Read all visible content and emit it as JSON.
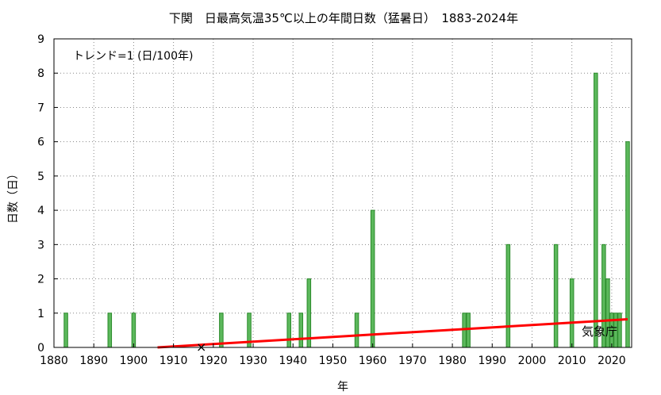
{
  "chart_data": {
    "type": "bar",
    "title": "下関　日最高気温35℃以上の年間日数（猛暑日）　1883-2024年",
    "xlabel": "年",
    "ylabel": "日数（日）",
    "xlim": [
      1880,
      2025
    ],
    "ylim": [
      0,
      9
    ],
    "x_ticks": [
      1880,
      1890,
      1900,
      1910,
      1920,
      1930,
      1940,
      1950,
      1960,
      1970,
      1980,
      1990,
      2000,
      2010,
      2020
    ],
    "y_ticks": [
      0,
      1,
      2,
      3,
      4,
      5,
      6,
      7,
      8,
      9
    ],
    "grid": true,
    "bar_color": "#5cb85c",
    "bar_edge_color": "#2a8a2a",
    "trend_color": "#ff0000",
    "annotation": "トレンド=1 (日/100年)",
    "source": "気象庁",
    "series": [
      {
        "x": [
          1883,
          1894,
          1900,
          1922,
          1929,
          1939,
          1942,
          1944,
          1956,
          1960,
          1983,
          1984,
          1994,
          2006,
          2010,
          2016,
          2018,
          2019,
          2020,
          2021,
          2022,
          2024
        ],
        "values": [
          1,
          1,
          1,
          1,
          1,
          1,
          1,
          2,
          1,
          4,
          1,
          1,
          3,
          3,
          2,
          8,
          3,
          2,
          1,
          1,
          1,
          6
        ]
      }
    ],
    "trend_line": {
      "x": [
        1906,
        2024
      ],
      "y": [
        0.0,
        0.82
      ]
    },
    "missing_marker": {
      "symbol": "×",
      "x": 1917,
      "y": 0
    }
  }
}
